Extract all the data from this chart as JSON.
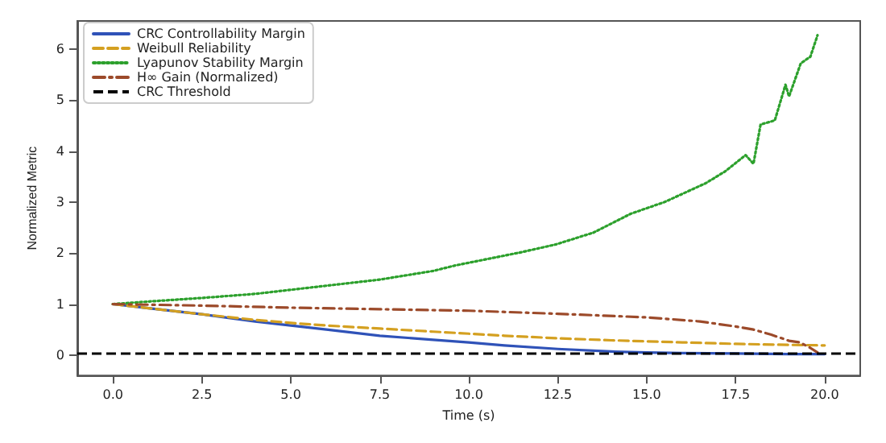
{
  "chart_data": {
    "type": "line",
    "xlabel": "Time (s)",
    "ylabel": "Normalized Metric",
    "xlim": [
      -1,
      21
    ],
    "ylim": [
      -0.4,
      6.55
    ],
    "xticks": [
      {
        "value": 0,
        "label": "0.0"
      },
      {
        "value": 2.5,
        "label": "2.5"
      },
      {
        "value": 5,
        "label": "5.0"
      },
      {
        "value": 7.5,
        "label": "7.5"
      },
      {
        "value": 10,
        "label": "10.0"
      },
      {
        "value": 12.5,
        "label": "12.5"
      },
      {
        "value": 15,
        "label": "15.0"
      },
      {
        "value": 17.5,
        "label": "17.5"
      },
      {
        "value": 20,
        "label": "20.0"
      }
    ],
    "yticks": [
      0,
      1,
      2,
      3,
      4,
      5,
      6
    ],
    "grid": false,
    "legend": "top left",
    "marker": "none",
    "series": [
      {
        "name": "CRC Controllability Margin",
        "color": "#2f52b8",
        "line_style": "solid",
        "x": [
          0,
          1,
          2.5,
          4,
          5,
          6,
          7.5,
          9,
          10,
          11,
          12.5,
          14,
          15,
          16,
          17.5,
          19,
          20
        ],
        "values": [
          1,
          0.92,
          0.8,
          0.66,
          0.58,
          0.5,
          0.38,
          0.3,
          0.25,
          0.19,
          0.12,
          0.07,
          0.05,
          0.04,
          0.03,
          0.02,
          0.02
        ]
      },
      {
        "name": "Weibull Reliability",
        "color": "#d4a020",
        "line_style": "dashed",
        "x": [
          0,
          1,
          2.5,
          4,
          5,
          6,
          7.5,
          9,
          10,
          11,
          12.5,
          14,
          15,
          16,
          17.5,
          19,
          20
        ],
        "values": [
          1,
          0.92,
          0.8,
          0.69,
          0.63,
          0.58,
          0.52,
          0.46,
          0.42,
          0.38,
          0.33,
          0.29,
          0.27,
          0.25,
          0.22,
          0.2,
          0.19
        ]
      },
      {
        "name": "Lyapunov Stability Margin",
        "color": "#2ca02c",
        "line_style": "dotted",
        "x": [
          0,
          1,
          2.5,
          4,
          5,
          6,
          7.5,
          9,
          9.64,
          10.5,
          11.5,
          12.45,
          13.5,
          14.55,
          15.5,
          16.66,
          17.2,
          17.78,
          18.0,
          18.2,
          18.6,
          18.9,
          19.0,
          19.33,
          19.6,
          19.8
        ],
        "values": [
          1,
          1.05,
          1.12,
          1.2,
          1.28,
          1.36,
          1.48,
          1.65,
          1.76,
          1.88,
          2.02,
          2.17,
          2.4,
          2.77,
          3.0,
          3.37,
          3.6,
          3.92,
          3.75,
          4.52,
          4.6,
          5.3,
          5.07,
          5.72,
          5.85,
          6.27
        ]
      },
      {
        "name": "H∞ Gain (Normalized)",
        "color": "#9c4a2a",
        "line_style": "dashdot",
        "x": [
          0,
          2.5,
          5,
          7.5,
          10,
          12.5,
          15,
          16.5,
          17.5,
          18,
          18.5,
          19,
          19.3,
          19.6,
          19.8
        ],
        "values": [
          1,
          0.97,
          0.93,
          0.9,
          0.87,
          0.81,
          0.74,
          0.66,
          0.56,
          0.5,
          0.4,
          0.28,
          0.25,
          0.14,
          0.05
        ]
      }
    ],
    "ref_lines": [
      {
        "axis": "y",
        "value": 0.05,
        "label": "CRC Threshold",
        "color": "#000000",
        "line_style": "dashed"
      }
    ]
  }
}
